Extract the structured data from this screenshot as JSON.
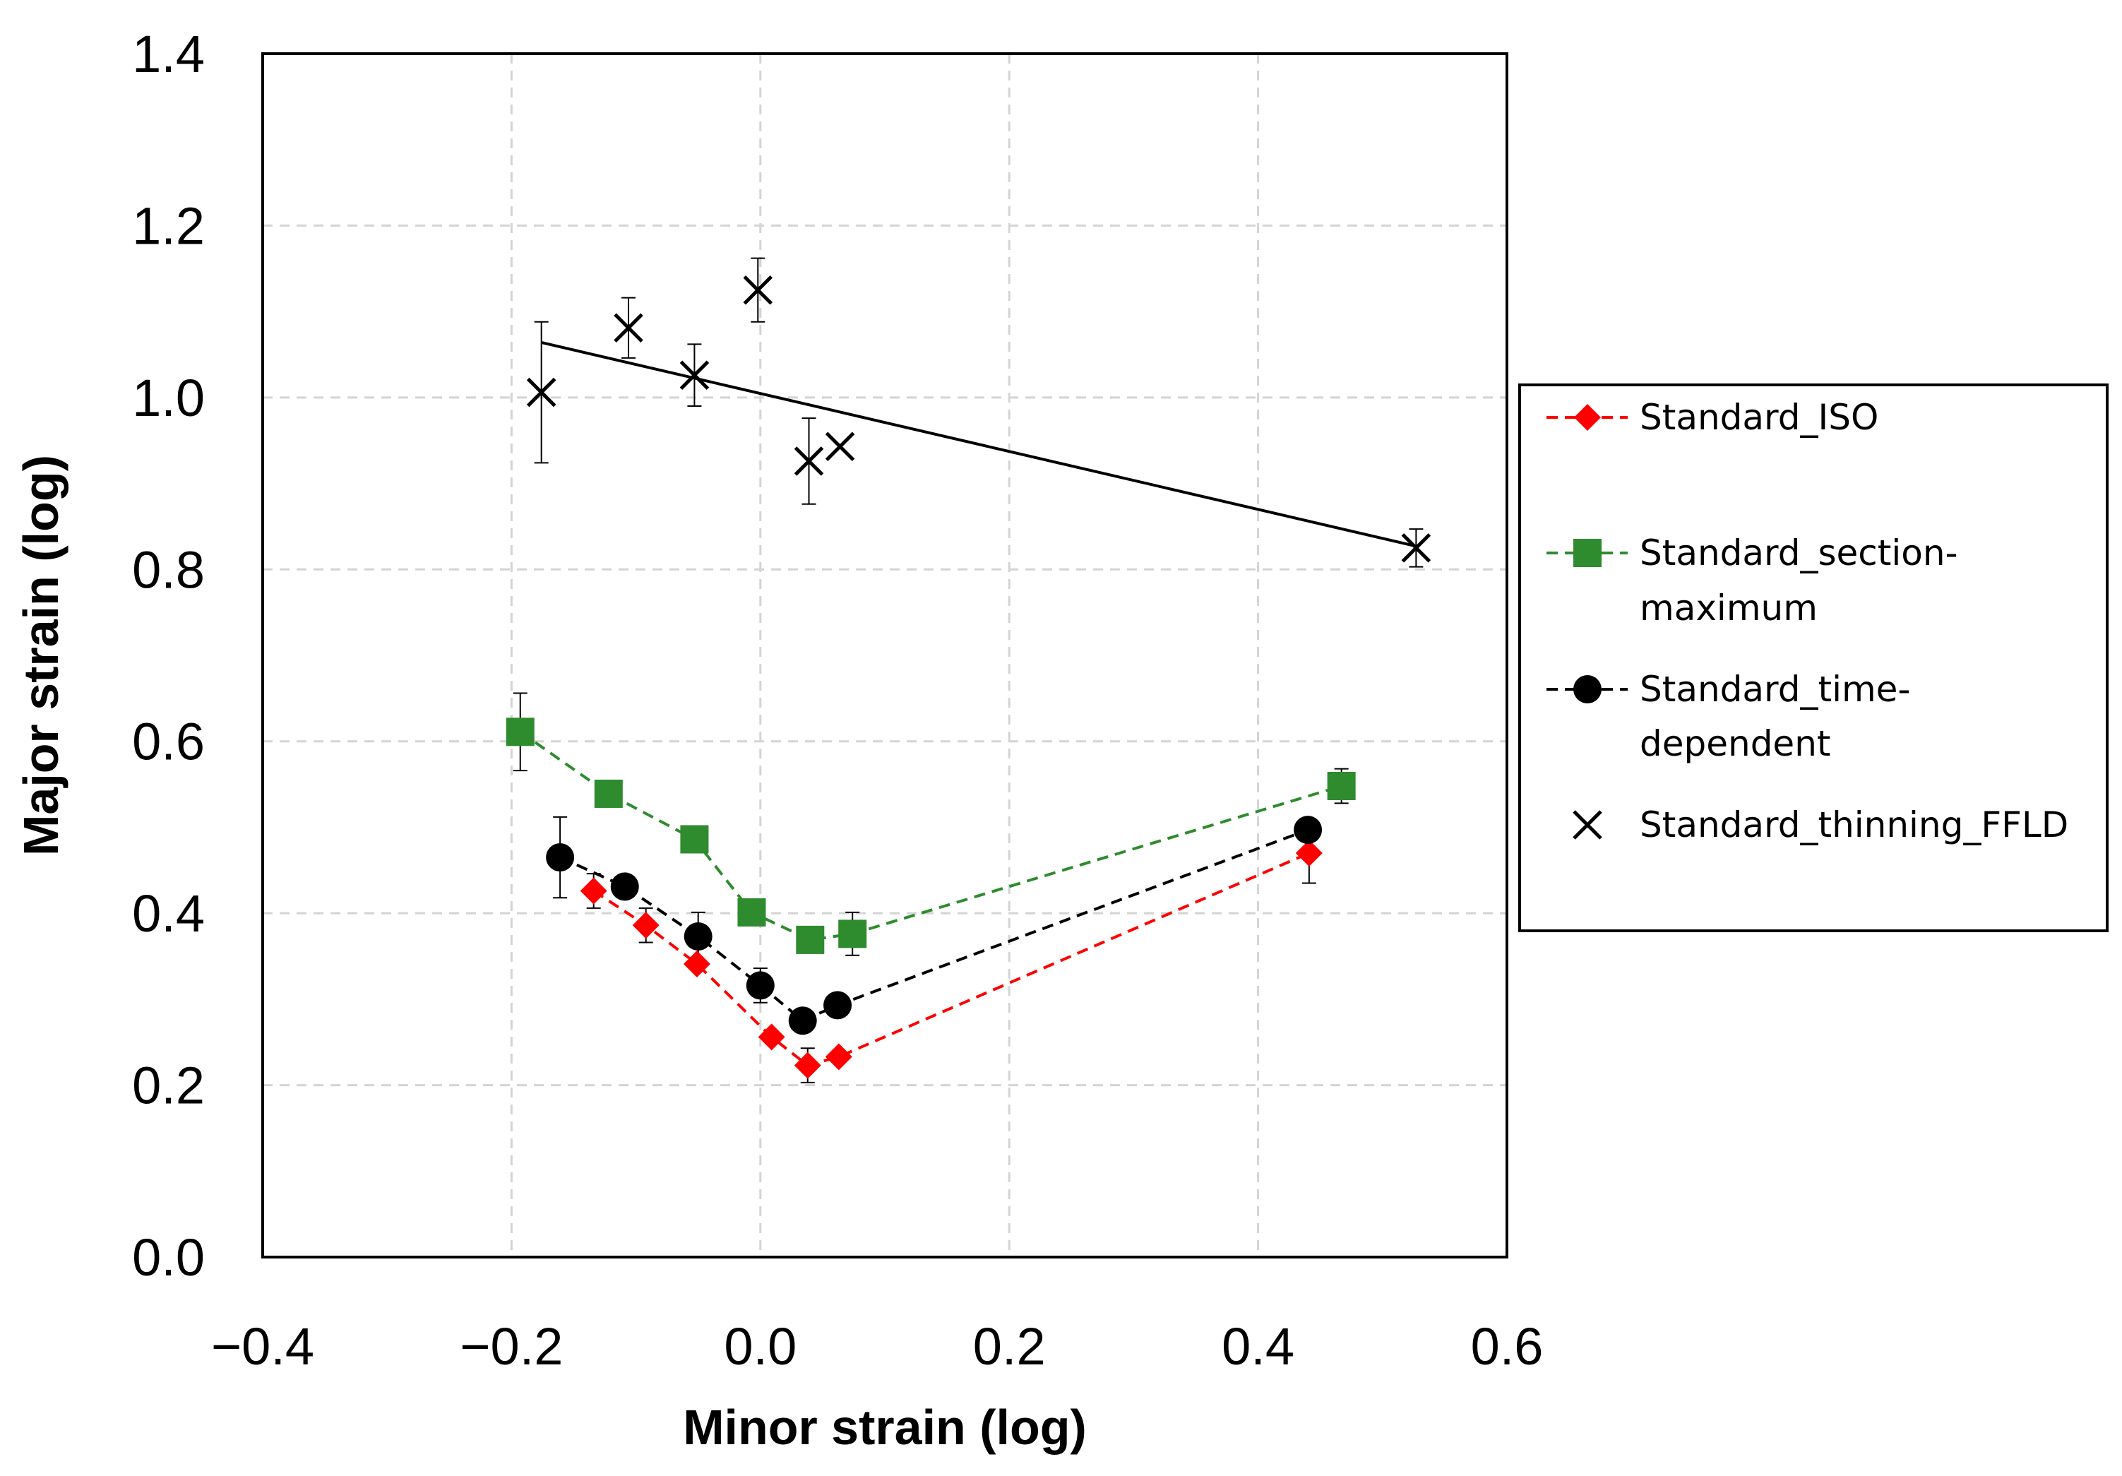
{
  "chart_data": {
    "type": "scatter",
    "xlabel": "Minor strain (log)",
    "ylabel": "Major strain (log)",
    "xlim": [
      -0.4,
      0.6
    ],
    "ylim": [
      0.0,
      1.4
    ],
    "x_ticks": [
      "−0.4",
      "−0.2",
      "0.0",
      "0.2",
      "0.4",
      "0.6"
    ],
    "y_ticks": [
      "0.0",
      "0.2",
      "0.4",
      "0.6",
      "0.8",
      "1.0",
      "1.2",
      "1.4"
    ],
    "grid": true,
    "legend_position": "right",
    "series": [
      {
        "name": "Standard_ISO",
        "color": "#ff0000",
        "marker": "diamond",
        "line": "dashed",
        "points": [
          {
            "x": -0.134,
            "y": 0.426,
            "err": 0.02
          },
          {
            "x": -0.092,
            "y": 0.386,
            "err": 0.02
          },
          {
            "x": -0.051,
            "y": 0.341,
            "err": 0.0
          },
          {
            "x": 0.009,
            "y": 0.256,
            "err": 0.0
          },
          {
            "x": 0.038,
            "y": 0.223,
            "err": 0.02
          },
          {
            "x": 0.063,
            "y": 0.233,
            "err": 0.0
          },
          {
            "x": 0.441,
            "y": 0.47,
            "err": 0.035
          }
        ]
      },
      {
        "name": "Standard_section-maximum",
        "color": "#2e8b2e",
        "marker": "square",
        "line": "dashed",
        "points": [
          {
            "x": -0.193,
            "y": 0.611,
            "err": 0.045
          },
          {
            "x": -0.122,
            "y": 0.539,
            "err": 0.0
          },
          {
            "x": -0.053,
            "y": 0.486,
            "err": 0.015
          },
          {
            "x": -0.007,
            "y": 0.401,
            "err": 0.0
          },
          {
            "x": 0.04,
            "y": 0.369,
            "err": 0.0
          },
          {
            "x": 0.074,
            "y": 0.376,
            "err": 0.025
          },
          {
            "x": 0.467,
            "y": 0.548,
            "err": 0.02
          }
        ]
      },
      {
        "name": "Standard_time-dependent",
        "color": "#000000",
        "marker": "circle",
        "line": "dashed",
        "points": [
          {
            "x": -0.161,
            "y": 0.465,
            "err": 0.047
          },
          {
            "x": -0.109,
            "y": 0.431,
            "err": 0.0
          },
          {
            "x": -0.05,
            "y": 0.373,
            "err": 0.028
          },
          {
            "x": 0.0,
            "y": 0.316,
            "err": 0.02
          },
          {
            "x": 0.034,
            "y": 0.275,
            "err": 0.0
          },
          {
            "x": 0.062,
            "y": 0.293,
            "err": 0.0
          },
          {
            "x": 0.44,
            "y": 0.497,
            "err": 0.0
          }
        ]
      },
      {
        "name": "Standard_thinning_FFLD",
        "color": "#000000",
        "marker": "x",
        "line": "none",
        "points": [
          {
            "x": -0.176,
            "y": 1.006,
            "err": 0.082
          },
          {
            "x": -0.106,
            "y": 1.081,
            "err": 0.035
          },
          {
            "x": -0.053,
            "y": 1.026,
            "err": 0.036
          },
          {
            "x": -0.002,
            "y": 1.125,
            "err": 0.037
          },
          {
            "x": 0.039,
            "y": 0.926,
            "err": 0.05
          },
          {
            "x": 0.064,
            "y": 0.943,
            "err": 0.0
          },
          {
            "x": 0.527,
            "y": 0.825,
            "err": 0.022
          }
        ]
      }
    ],
    "trendline": {
      "series": "Standard_thinning_FFLD",
      "x": [
        -0.176,
        0.527
      ],
      "y": [
        1.064,
        0.827
      ],
      "color": "#000000"
    }
  }
}
